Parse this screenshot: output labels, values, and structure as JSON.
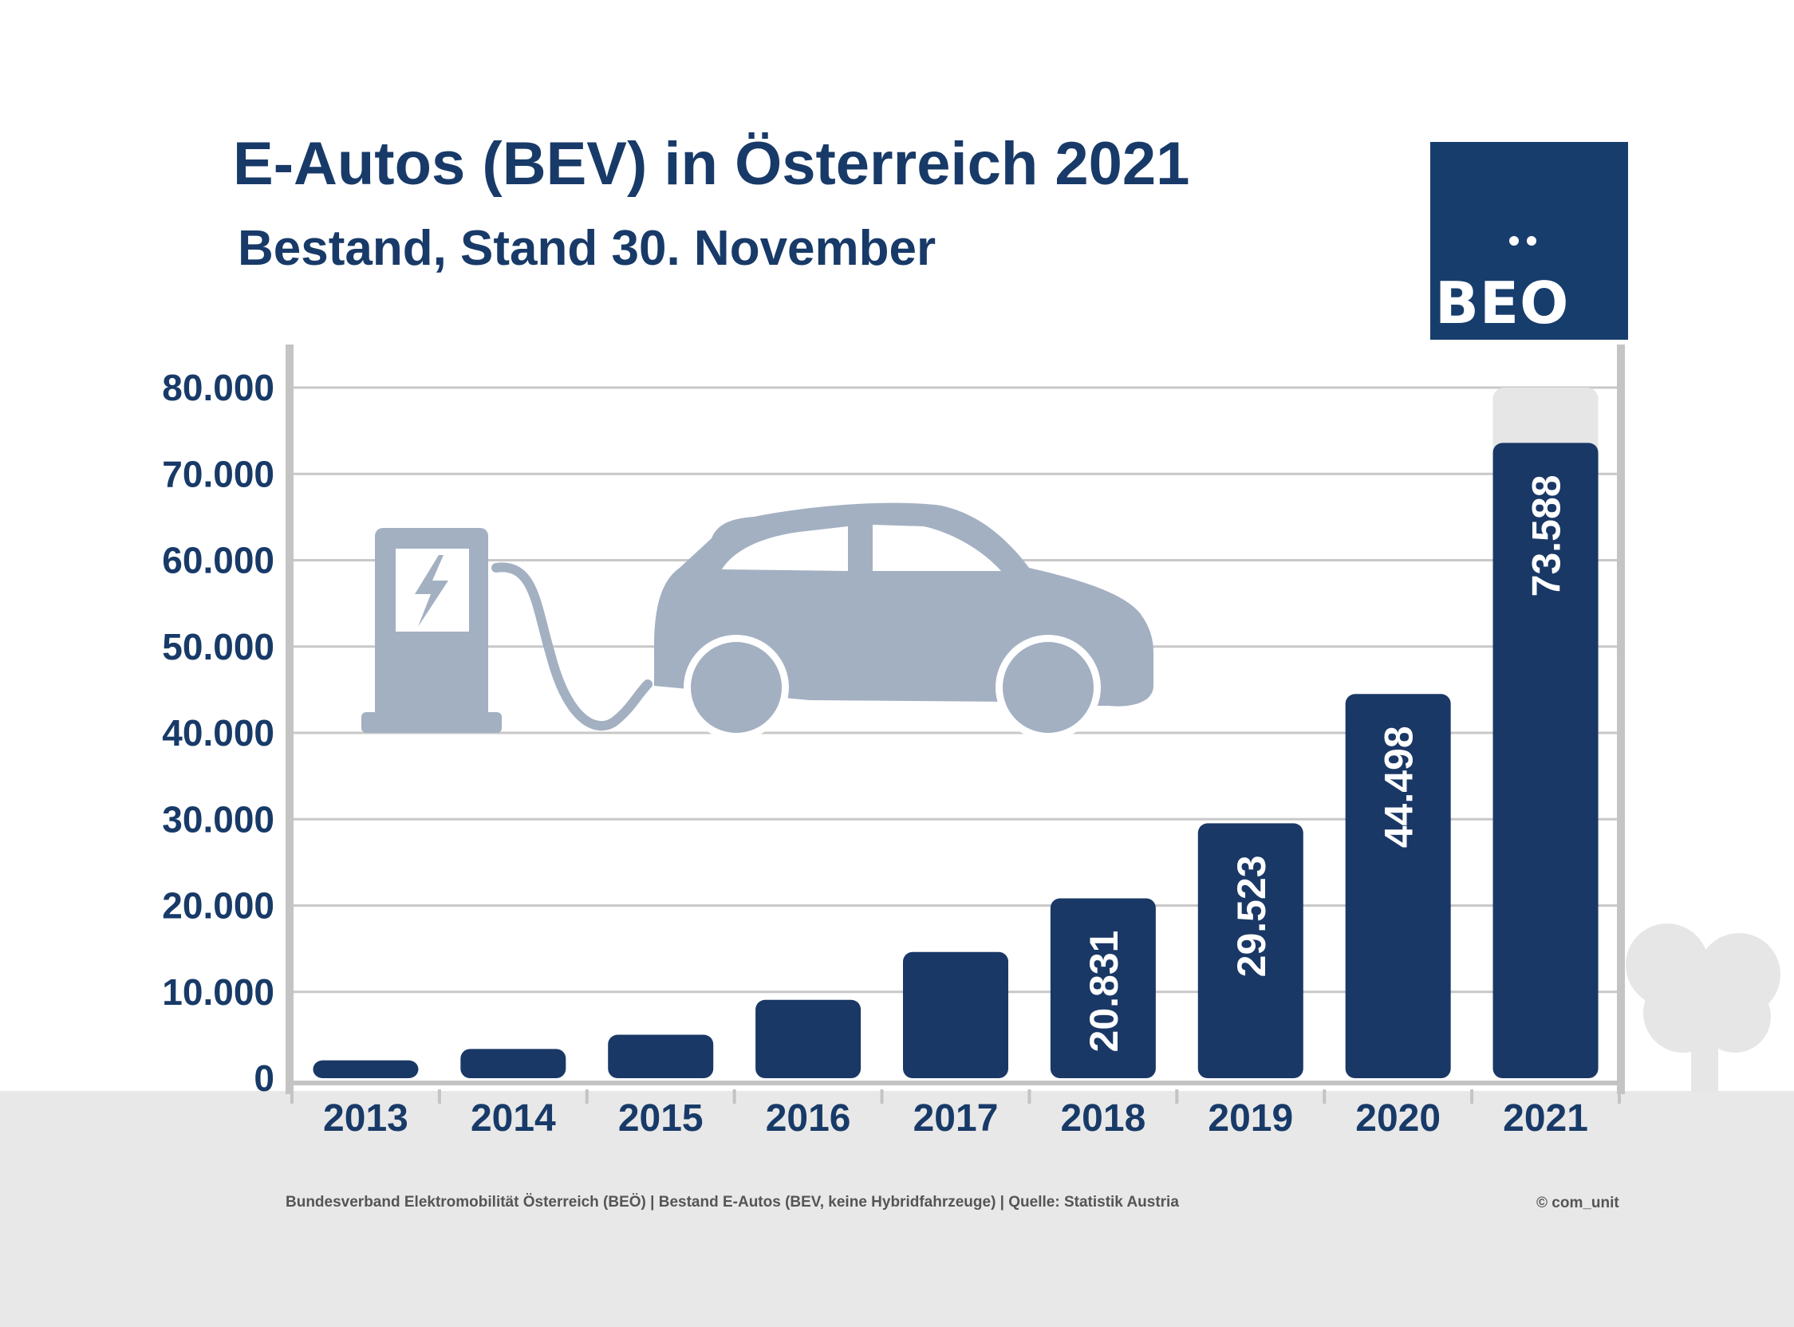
{
  "chart_data": {
    "type": "bar",
    "title": "E-Autos (BEV) in Österreich 2021",
    "subtitle": "Bestand, Stand 30. November",
    "categories": [
      "2013",
      "2014",
      "2015",
      "2016",
      "2017",
      "2018",
      "2019",
      "2020",
      "2021"
    ],
    "values": [
      2070,
      3386,
      5032,
      9073,
      14618,
      20831,
      29523,
      44498,
      73588
    ],
    "data_labels": [
      "",
      "",
      "",
      "",
      "",
      "20.831",
      "29.523",
      "44.498",
      "73.588"
    ],
    "ylim": [
      0,
      80000
    ],
    "yticks": [
      0,
      10000,
      20000,
      30000,
      40000,
      50000,
      60000,
      70000,
      80000
    ],
    "ytick_labels": [
      "0",
      "10.000",
      "20.000",
      "30.000",
      "40.000",
      "50.000",
      "60.000",
      "70.000",
      "80.000"
    ],
    "grid": true,
    "colors": {
      "bar": "#1a3866",
      "bar_ghost": "#e6e6e6",
      "text": "#183a68",
      "illustration": "#a3b0c2",
      "ground": "#e8e8e8"
    }
  },
  "logo": {
    "text": "BEO"
  },
  "footer": {
    "source": "Bundesverband Elektromobilität Österreich (BEÖ) | Bestand E-Autos (BEV, keine Hybridfahrzeuge) | Quelle: Statistik Austria",
    "copyright": "© com_unit"
  },
  "illustration": {
    "icons": [
      "charging-station-icon",
      "car-icon",
      "tree-icon"
    ]
  }
}
